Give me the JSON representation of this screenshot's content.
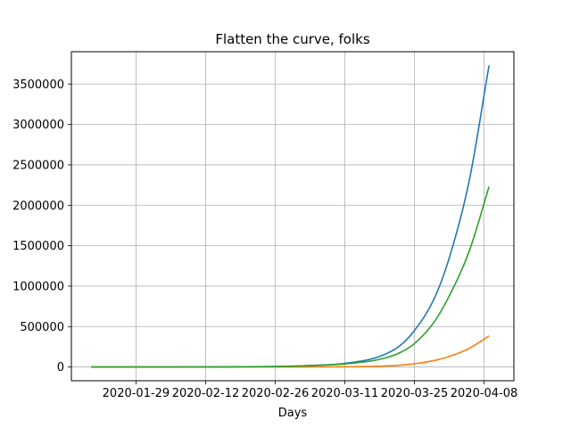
{
  "chart_data": {
    "type": "line",
    "title": "Flatten the curve, folks",
    "xlabel": "Days",
    "ylabel": "",
    "x_range": [
      "2020-01-16",
      "2020-04-14"
    ],
    "ylim": [
      -170000,
      3900000
    ],
    "x_ticks": [
      "2020-01-29",
      "2020-02-12",
      "2020-02-26",
      "2020-03-11",
      "2020-03-25",
      "2020-04-08"
    ],
    "y_ticks": [
      0,
      500000,
      1000000,
      1500000,
      2000000,
      2500000,
      3000000,
      3500000
    ],
    "grid": true,
    "legend": "none",
    "x": [
      "2020-01-20",
      "2020-02-03",
      "2020-02-17",
      "2020-02-26",
      "2020-03-04",
      "2020-03-11",
      "2020-03-18",
      "2020-03-22",
      "2020-03-25",
      "2020-03-29",
      "2020-04-01",
      "2020-04-05",
      "2020-04-09"
    ],
    "series": [
      {
        "color": "#1f77b4",
        "values": [
          0,
          300,
          2000,
          6000,
          18000,
          45000,
          130000,
          260000,
          450000,
          850000,
          1350000,
          2300000,
          3730000
        ]
      },
      {
        "color": "#ff7f0e",
        "values": [
          0,
          0,
          0,
          200,
          800,
          3000,
          10000,
          22000,
          40000,
          80000,
          130000,
          230000,
          385000
        ]
      },
      {
        "color": "#2ca02c",
        "values": [
          0,
          300,
          2000,
          6000,
          17000,
          38000,
          95000,
          175000,
          290000,
          560000,
          880000,
          1430000,
          2230000
        ]
      }
    ]
  }
}
